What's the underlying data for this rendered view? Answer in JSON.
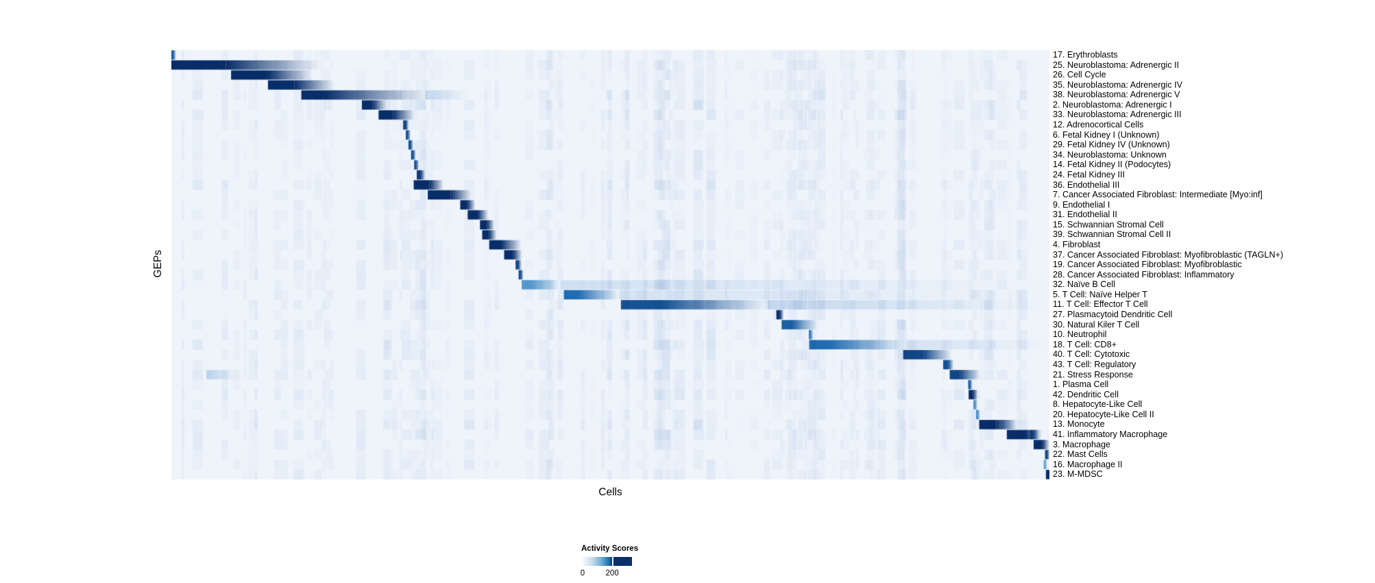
{
  "chart_data": {
    "type": "heatmap",
    "title": "",
    "xlabel": "Cells",
    "ylabel": "GEPs",
    "background_color": "#eff4fb",
    "grid": false,
    "legend_position": "bottom-center",
    "colorbar": {
      "title": "Activity Scores",
      "tick_labels": [
        "0",
        "200"
      ],
      "tick_position_frac": 0.61,
      "gradient_stops": [
        {
          "color": "#ffffff",
          "pos": 0
        },
        {
          "color": "#c6dbef",
          "pos": 0.22
        },
        {
          "color": "#6baed6",
          "pos": 0.4
        },
        {
          "color": "#2171b5",
          "pos": 0.54
        },
        {
          "color": "#08306b",
          "pos": 0.62
        },
        {
          "color": "#08306b",
          "pos": 1
        }
      ]
    },
    "color_ramp": [
      {
        "t": 0,
        "color": "#ffffff"
      },
      {
        "t": 0.25,
        "color": "#c6dbef"
      },
      {
        "t": 0.5,
        "color": "#6baed6"
      },
      {
        "t": 0.75,
        "color": "#2171b5"
      },
      {
        "t": 1,
        "color": "#08306b"
      }
    ],
    "noise": {
      "seed": 7,
      "bands": 120
    },
    "segment_format": [
      "start_frac",
      "dark_width_frac",
      "fade_width_frac",
      "intensity_0_to_1"
    ],
    "rows": [
      {
        "label": "17. Erythroblasts",
        "noise": 0.3,
        "segments": [
          [
            0.0,
            0.0023,
            0.0031,
            0.8
          ]
        ]
      },
      {
        "label": "25. Neuroblastoma: Adrenergic II",
        "noise": 0.35,
        "segments": [
          [
            0.0,
            0.062,
            0.105,
            1.0
          ]
        ]
      },
      {
        "label": "26. Cell Cycle",
        "noise": 0.3,
        "segments": [
          [
            0.068,
            0.042,
            0.05,
            1.0
          ]
        ]
      },
      {
        "label": "35. Neuroblastoma: Adrenergic IV",
        "noise": 0.3,
        "segments": [
          [
            0.11,
            0.03,
            0.045,
            1.0
          ]
        ]
      },
      {
        "label": "38. Neuroblastoma: Adrenergic V",
        "noise": 0.5,
        "segments": [
          [
            0.148,
            0.026,
            0.115,
            1.0
          ],
          [
            0.289,
            0,
            0.05,
            0.2
          ]
        ]
      },
      {
        "label": "2. Neuroblastoma: Adrenergic I",
        "noise": 0.5,
        "segments": [
          [
            0.217,
            0.012,
            0.016,
            1.0
          ]
        ]
      },
      {
        "label": "33. Neuroblastoma: Adrenergic III",
        "noise": 0.45,
        "segments": [
          [
            0.236,
            0.0165,
            0.024,
            1.0
          ]
        ]
      },
      {
        "label": "12. Adrenocortical Cells",
        "noise": 0.3,
        "segments": [
          [
            0.264,
            0.003,
            0.0035,
            0.9
          ]
        ]
      },
      {
        "label": "6. Fetal Kidney I (Unknown)",
        "noise": 0.28,
        "segments": [
          [
            0.267,
            0.0025,
            0.003,
            0.85
          ]
        ]
      },
      {
        "label": "29. Fetal Kidney IV (Unknown)",
        "noise": 0.28,
        "segments": [
          [
            0.27,
            0.0025,
            0.003,
            0.85
          ]
        ]
      },
      {
        "label": "34. Neuroblastoma: Unknown",
        "noise": 0.32,
        "segments": [
          [
            0.273,
            0.0025,
            0.003,
            0.85
          ]
        ]
      },
      {
        "label": "14. Fetal Kidney II (Podocytes)",
        "noise": 0.28,
        "segments": [
          [
            0.2765,
            0.0025,
            0.003,
            0.85
          ]
        ]
      },
      {
        "label": "24. Fetal Kidney III",
        "noise": 0.28,
        "segments": [
          [
            0.2795,
            0.0045,
            0.005,
            0.95
          ]
        ]
      },
      {
        "label": "36. Endothelial III",
        "noise": 0.48,
        "segments": [
          [
            0.276,
            0.018,
            0.016,
            1.0
          ]
        ]
      },
      {
        "label": "7. Cancer Associated Fibroblast: Intermediate [Myo:inf]",
        "noise": 0.42,
        "segments": [
          [
            0.292,
            0.026,
            0.023,
            1.0
          ]
        ]
      },
      {
        "label": "9. Endothelial I",
        "noise": 0.3,
        "segments": [
          [
            0.329,
            0.008,
            0.009,
            1.0
          ]
        ]
      },
      {
        "label": "31. Endothelial II",
        "noise": 0.33,
        "segments": [
          [
            0.3375,
            0.0115,
            0.012,
            1.0
          ]
        ]
      },
      {
        "label": "15. Schwannian Stromal Cell",
        "noise": 0.3,
        "segments": [
          [
            0.3515,
            0.008,
            0.0085,
            1.0
          ]
        ]
      },
      {
        "label": "39. Schwannian Stromal Cell II",
        "noise": 0.3,
        "segments": [
          [
            0.354,
            0.0078,
            0.0085,
            1.0
          ]
        ]
      },
      {
        "label": "4. Fibroblast",
        "noise": 0.42,
        "segments": [
          [
            0.362,
            0.0135,
            0.023,
            1.0
          ]
        ]
      },
      {
        "label": "37. Cancer Associated Fibroblast: Myofibroblastic (TAGLN+)",
        "noise": 0.38,
        "segments": [
          [
            0.379,
            0.01,
            0.0105,
            1.0
          ]
        ]
      },
      {
        "label": "19. Cancer Associated Fibroblast: Myofibroblastic",
        "noise": 0.34,
        "segments": [
          [
            0.392,
            0.003,
            0.004,
            0.9
          ]
        ]
      },
      {
        "label": "28. Cancer Associated Fibroblast: Inflammatory",
        "noise": 0.38,
        "segments": [
          [
            0.3955,
            0.0025,
            0.003,
            0.9
          ]
        ]
      },
      {
        "label": "32. Naïve B Cell",
        "noise": 0.42,
        "segments": [
          [
            0.399,
            0.012,
            0.032,
            0.55
          ],
          [
            0.443,
            0,
            0.557,
            0.14
          ]
        ]
      },
      {
        "label": "5. T Cell: Naïve Helper T",
        "noise": 0.46,
        "segments": [
          [
            0.447,
            0.016,
            0.047,
            0.75
          ],
          [
            0.51,
            0,
            0.49,
            0.12
          ]
        ]
      },
      {
        "label": "11. T Cell: Effector T Cell",
        "noise": 0.52,
        "segments": [
          [
            0.512,
            0.047,
            0.12,
            0.85
          ],
          [
            0.679,
            0,
            0.321,
            0.2
          ]
        ]
      },
      {
        "label": "27. Plasmacytoid Dendritic Cell",
        "noise": 0.34,
        "segments": [
          [
            0.689,
            0.004,
            0.0045,
            1.0
          ]
        ]
      },
      {
        "label": "30. Natural Kiler T Cell",
        "noise": 0.4,
        "segments": [
          [
            0.695,
            0.0115,
            0.028,
            0.8
          ]
        ]
      },
      {
        "label": "10. Neutrophil",
        "noise": 0.42,
        "segments": [
          [
            0.726,
            0.002,
            0.003,
            0.7
          ]
        ]
      },
      {
        "label": "18. T Cell: CD8+",
        "noise": 0.5,
        "segments": [
          [
            0.7265,
            0.023,
            0.086,
            0.75
          ],
          [
            0.836,
            0,
            0.164,
            0.13
          ]
        ]
      },
      {
        "label": "40. T Cell: Cytotoxic",
        "noise": 0.46,
        "segments": [
          [
            0.8335,
            0.023,
            0.032,
            0.9
          ]
        ]
      },
      {
        "label": "43. T Cell: Regulatory",
        "noise": 0.38,
        "segments": [
          [
            0.879,
            0.006,
            0.006,
            0.85
          ]
        ]
      },
      {
        "label": "21. Stress Response",
        "noise": 0.46,
        "segments": [
          [
            0.8865,
            0.0115,
            0.023,
            0.9
          ],
          [
            0.04,
            0,
            0.035,
            0.25
          ]
        ]
      },
      {
        "label": "1. Plasma Cell",
        "noise": 0.32,
        "segments": [
          [
            0.9075,
            0.002,
            0.003,
            0.8
          ]
        ]
      },
      {
        "label": "42. Dendritic Cell",
        "noise": 0.46,
        "segments": [
          [
            0.908,
            0.005,
            0.0055,
            1.0
          ]
        ]
      },
      {
        "label": "8. Hepatocyte-Like Cell",
        "noise": 0.28,
        "segments": [
          [
            0.9135,
            0.002,
            0.0025,
            0.6
          ]
        ]
      },
      {
        "label": "20. Hepatocyte-Like Cell II",
        "noise": 0.32,
        "segments": [
          [
            0.9165,
            0.002,
            0.0025,
            0.6
          ]
        ]
      },
      {
        "label": "13. Monocyte",
        "noise": 0.52,
        "segments": [
          [
            0.92,
            0.0195,
            0.023,
            1.0
          ],
          [
            0.945,
            0,
            0.02,
            0.3
          ]
        ]
      },
      {
        "label": "41. Inflammatory Macrophage",
        "noise": 0.52,
        "segments": [
          [
            0.9515,
            0.022,
            0.018,
            1.0
          ],
          [
            0.978,
            0.004,
            0.006,
            0.7
          ]
        ]
      },
      {
        "label": "3. Macrophage",
        "noise": 0.44,
        "segments": [
          [
            0.982,
            0.01,
            0.008,
            1.0
          ]
        ]
      },
      {
        "label": "22. Mast Cells",
        "noise": 0.28,
        "segments": [
          [
            0.995,
            0.003,
            0.002,
            0.9
          ]
        ]
      },
      {
        "label": "16. Macrophage II",
        "noise": 0.38,
        "segments": [
          [
            0.9935,
            0.002,
            0.002,
            0.5
          ]
        ]
      },
      {
        "label": "23. M-MDSC",
        "noise": 0.34,
        "segments": [
          [
            0.996,
            0.004,
            0.0,
            1.0
          ]
        ]
      }
    ]
  }
}
